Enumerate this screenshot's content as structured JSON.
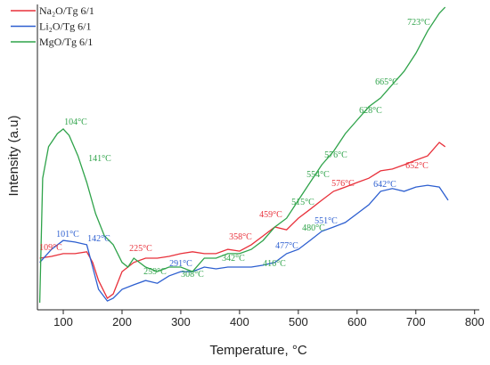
{
  "chart_data": {
    "type": "line",
    "x_label": "Temperature, °C",
    "y_label": "Intensity (a.u)",
    "xlim": [
      56,
      808
    ],
    "xticks": [
      100,
      200,
      300,
      400,
      500,
      600,
      700,
      800
    ],
    "ylim": [
      0,
      100
    ],
    "legend": "upper left",
    "series": [
      {
        "name": "Na₂O/Tg 6/1",
        "color": "#e8303a",
        "x": [
          60,
          80,
          100,
          120,
          140,
          150,
          160,
          175,
          185,
          200,
          220,
          240,
          260,
          280,
          300,
          320,
          340,
          360,
          380,
          400,
          420,
          440,
          460,
          480,
          500,
          520,
          540,
          560,
          580,
          600,
          620,
          640,
          660,
          680,
          700,
          720,
          740,
          750
        ],
        "values": [
          16.9,
          17.5,
          18.4,
          18.4,
          19.0,
          15.5,
          9.6,
          3.8,
          5.2,
          12.5,
          15.5,
          16.9,
          16.9,
          17.5,
          18.4,
          19.0,
          18.4,
          18.4,
          19.8,
          19.2,
          21.3,
          24.2,
          27.1,
          26.2,
          30.0,
          32.9,
          35.9,
          38.8,
          40.2,
          41.7,
          43.1,
          45.5,
          46.1,
          47.5,
          49.0,
          50.4,
          54.8,
          53.4
        ]
      },
      {
        "name": "Li₂O/Tg 6/1",
        "color": "#2d5fd0",
        "x": [
          60,
          80,
          100,
          120,
          140,
          150,
          160,
          175,
          185,
          200,
          220,
          240,
          260,
          280,
          300,
          320,
          340,
          360,
          380,
          400,
          420,
          440,
          460,
          480,
          500,
          520,
          540,
          560,
          580,
          600,
          620,
          640,
          660,
          680,
          700,
          720,
          740,
          755
        ],
        "values": [
          15.5,
          19.8,
          22.7,
          22.2,
          21.3,
          14.0,
          6.7,
          2.9,
          3.8,
          6.7,
          8.2,
          9.6,
          8.7,
          11.1,
          12.5,
          12.5,
          14.0,
          13.4,
          14.0,
          14.0,
          14.0,
          14.6,
          15.5,
          18.4,
          19.8,
          22.7,
          25.7,
          27.1,
          28.6,
          31.5,
          34.4,
          38.8,
          39.7,
          38.8,
          40.2,
          40.8,
          40.2,
          35.9
        ]
      },
      {
        "name": "MgO/Tg 6/1",
        "color": "#2fa34a",
        "x": [
          60,
          65,
          75,
          90,
          100,
          110,
          125,
          140,
          155,
          170,
          185,
          200,
          210,
          220,
          240,
          260,
          280,
          300,
          320,
          340,
          360,
          380,
          400,
          420,
          440,
          460,
          480,
          500,
          520,
          540,
          560,
          580,
          600,
          620,
          640,
          660,
          680,
          700,
          720,
          740,
          750
        ],
        "values": [
          2.3,
          43.1,
          53.4,
          57.7,
          59.2,
          57.1,
          50.4,
          41.7,
          31.5,
          24.2,
          21.3,
          15.5,
          14.0,
          16.9,
          14.0,
          12.5,
          14.0,
          14.0,
          12.5,
          16.9,
          16.9,
          18.4,
          18.4,
          19.8,
          22.7,
          27.1,
          30.0,
          35.9,
          41.7,
          47.5,
          51.9,
          57.7,
          62.1,
          66.5,
          69.4,
          73.8,
          78.1,
          84.0,
          91.3,
          97.1,
          99.1
        ]
      }
    ],
    "annotations": [
      {
        "text": "104°C",
        "series": 2
      },
      {
        "text": "141°C",
        "series": 2
      },
      {
        "text": "259°C",
        "series": 2
      },
      {
        "text": "308°C",
        "series": 2
      },
      {
        "text": "342°C",
        "series": 2
      },
      {
        "text": "416°C",
        "series": 2
      },
      {
        "text": "480°C",
        "series": 2
      },
      {
        "text": "515°C",
        "series": 2
      },
      {
        "text": "554°C",
        "series": 2
      },
      {
        "text": "576°C",
        "series": 2
      },
      {
        "text": "628°C",
        "series": 2
      },
      {
        "text": "665°C",
        "series": 2
      },
      {
        "text": "723°C",
        "series": 2
      },
      {
        "text": "109°C",
        "series": 0
      },
      {
        "text": "225°C",
        "series": 0
      },
      {
        "text": "358°C",
        "series": 0
      },
      {
        "text": "459°C",
        "series": 0
      },
      {
        "text": "576°C",
        "series": 0
      },
      {
        "text": "652°C",
        "series": 0
      },
      {
        "text": "101°C",
        "series": 1
      },
      {
        "text": "142°C",
        "series": 1
      },
      {
        "text": "291°C",
        "series": 1
      },
      {
        "text": "477°C",
        "series": 1
      },
      {
        "text": "551°C",
        "series": 1
      },
      {
        "text": "642°C",
        "series": 1
      }
    ]
  }
}
